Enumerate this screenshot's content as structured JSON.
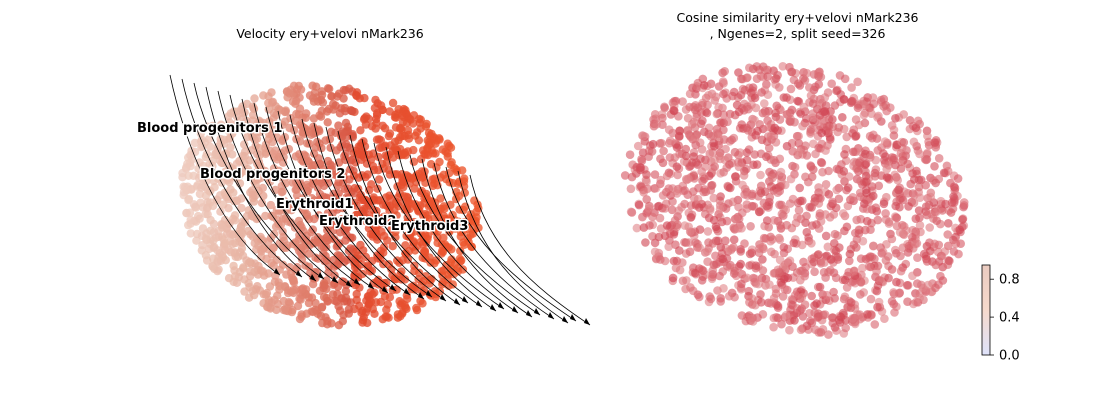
{
  "chart_data": [
    {
      "type": "scatter",
      "title": "Velocity ery+velovi nMark236",
      "overlay": "velocity streamlines with arrowheads",
      "axes": "off",
      "cluster_labels": [
        "Blood progenitors 1",
        "Blood progenitors 2",
        "Erythroid1",
        "Erythroid2",
        "Erythroid3"
      ],
      "colors": {
        "Blood progenitors 1": "#f2d9cf",
        "Blood progenitors 2": "#e8b4a3",
        "Erythroid1": "#d9533f",
        "Erythroid2": "#e24b30",
        "Erythroid3": "#f25a2a"
      }
    },
    {
      "type": "scatter",
      "title": "Cosine similarity ery+velovi nMark236",
      "subtitle": ", Ngenes=2, split seed=326",
      "axes": "off",
      "colorbar": {
        "ticks": [
          "0.0",
          "0.4",
          "0.8"
        ],
        "range": [
          0,
          0.95
        ],
        "colors": [
          "#dfe3fb",
          "#f5d9cc",
          "#eacbc0"
        ]
      },
      "point_color": "#cf3f4e"
    }
  ]
}
